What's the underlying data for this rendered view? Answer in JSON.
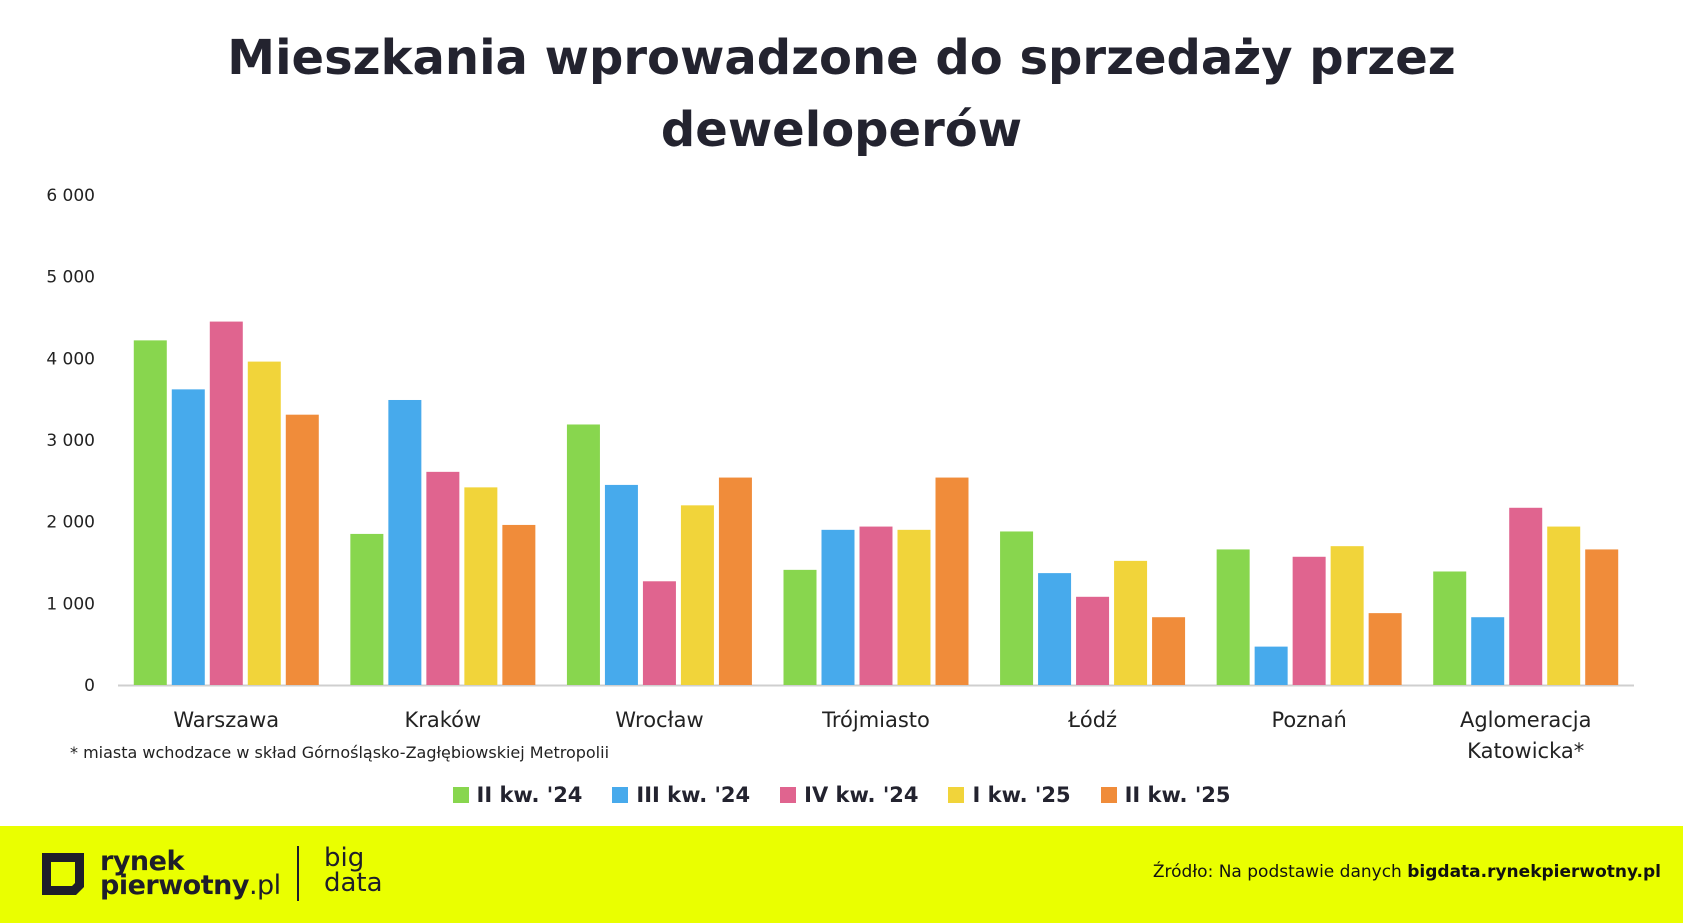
{
  "title_lines": [
    "Mieszkania wprowadzone do sprzedaży przez",
    "deweloperów"
  ],
  "footnote": "* miasta wchodzace w skład Górnośląsko-Zagłębiowskiej Metropolii",
  "chart_data": {
    "type": "bar",
    "title": "Mieszkania wprowadzone do sprzedaży przez deweloperów",
    "categories": [
      "Warszawa",
      "Kraków",
      "Wrocław",
      "Trójmiasto",
      "Łódź",
      "Poznań",
      "Aglomeracja Katowicka*"
    ],
    "category_label_lines": [
      [
        "Warszawa"
      ],
      [
        "Kraków"
      ],
      [
        "Wrocław"
      ],
      [
        "Trójmiasto"
      ],
      [
        "Łódź"
      ],
      [
        "Poznań"
      ],
      [
        "Aglomeracja",
        "Katowicka*"
      ]
    ],
    "series": [
      {
        "name": "II kw. '24",
        "color": "#88d64e",
        "values": [
          4220,
          1850,
          3190,
          1410,
          1880,
          1660,
          1390
        ]
      },
      {
        "name": "III kw. '24",
        "color": "#47aaec",
        "values": [
          3620,
          3490,
          2450,
          1900,
          1370,
          470,
          830
        ]
      },
      {
        "name": "IV kw. '24",
        "color": "#e0648f",
        "values": [
          4450,
          2610,
          1270,
          1940,
          1080,
          1570,
          2170
        ]
      },
      {
        "name": "I kw. '25",
        "color": "#f1d43a",
        "values": [
          3960,
          2420,
          2200,
          1900,
          1520,
          1700,
          1940
        ]
      },
      {
        "name": "II kw. '25",
        "color": "#f08c3a",
        "values": [
          3310,
          1960,
          2540,
          2540,
          830,
          880,
          1660
        ]
      }
    ],
    "ylim": [
      0,
      6000
    ],
    "yticks": [
      0,
      1000,
      2000,
      3000,
      4000,
      5000,
      6000
    ],
    "ytick_labels": [
      "0",
      "1 000",
      "2 000",
      "3 000",
      "4 000",
      "5 000",
      "6 000"
    ],
    "xlabel": "",
    "ylabel": "",
    "grid": false,
    "legend_position": "bottom"
  },
  "footer": {
    "background": "#eaff00",
    "logo_line1": "rynek",
    "logo_line2": "pierwotny",
    "logo_suffix": ".pl",
    "bigdata_line1": "big",
    "bigdata_line2": "data",
    "source_prefix": "Źródło: Na podstawie danych ",
    "source_site": "bigdata.rynekpierwotny.pl"
  }
}
